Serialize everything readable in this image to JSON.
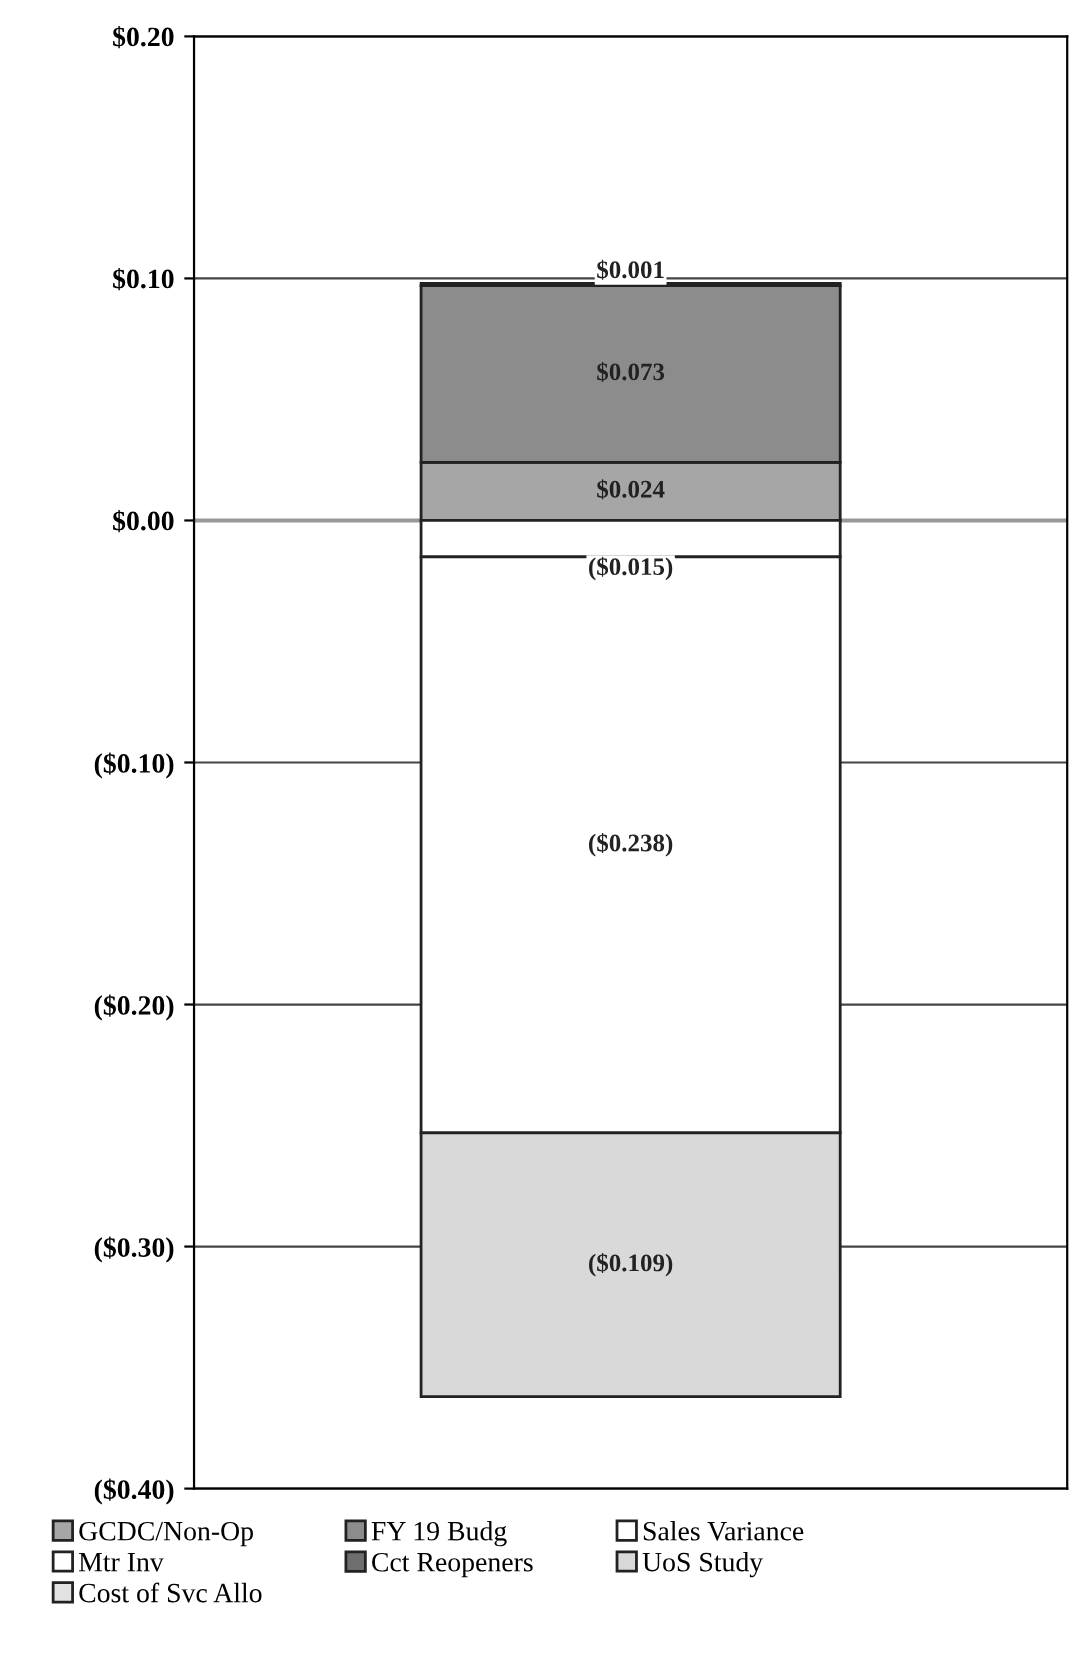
{
  "chart_data": {
    "type": "bar",
    "stacked": true,
    "categories": [
      null
    ],
    "series": [
      {
        "name": "GCDC/Non-Op",
        "color": "#a6a6a6",
        "values": [
          0.024
        ],
        "value_labels": [
          "$0.024"
        ]
      },
      {
        "name": "FY 19 Budg",
        "color": "#8c8c8c",
        "values": [
          0.073
        ],
        "value_labels": [
          "$0.073"
        ]
      },
      {
        "name": "Sales Variance",
        "color": "#ffffff",
        "values": [
          -0.015
        ],
        "value_labels": [
          "($0.015)"
        ]
      },
      {
        "name": "Mtr Inv",
        "color": "#ffffff",
        "values": [
          -0.238
        ],
        "value_labels": [
          "($0.238)"
        ]
      },
      {
        "name": "Cct Reopeners",
        "color": "#6e6e6e",
        "values": [
          null
        ],
        "value_labels": [
          null
        ]
      },
      {
        "name": "UoS Study",
        "color": "#d9d9d9",
        "values": [
          -0.109
        ],
        "value_labels": [
          "($0.109)"
        ]
      },
      {
        "name": "Cost of Svc Allo",
        "color": "#e3e3e3",
        "values": [
          0.001
        ],
        "value_labels": [
          "$0.001"
        ]
      }
    ],
    "ylim": [
      -0.4,
      0.2
    ],
    "yticks": [
      {
        "value": -0.4,
        "label": "($0.40)"
      },
      {
        "value": -0.3,
        "label": "($0.30)"
      },
      {
        "value": -0.2,
        "label": "($0.20)"
      },
      {
        "value": -0.1,
        "label": "($0.10)"
      },
      {
        "value": 0,
        "label": "$0.00"
      },
      {
        "value": 0.1,
        "label": "$0.10"
      },
      {
        "value": 0.2,
        "label": "$0.20"
      }
    ],
    "grid": "y",
    "legend": "bottom",
    "tick_labels": "y"
  }
}
